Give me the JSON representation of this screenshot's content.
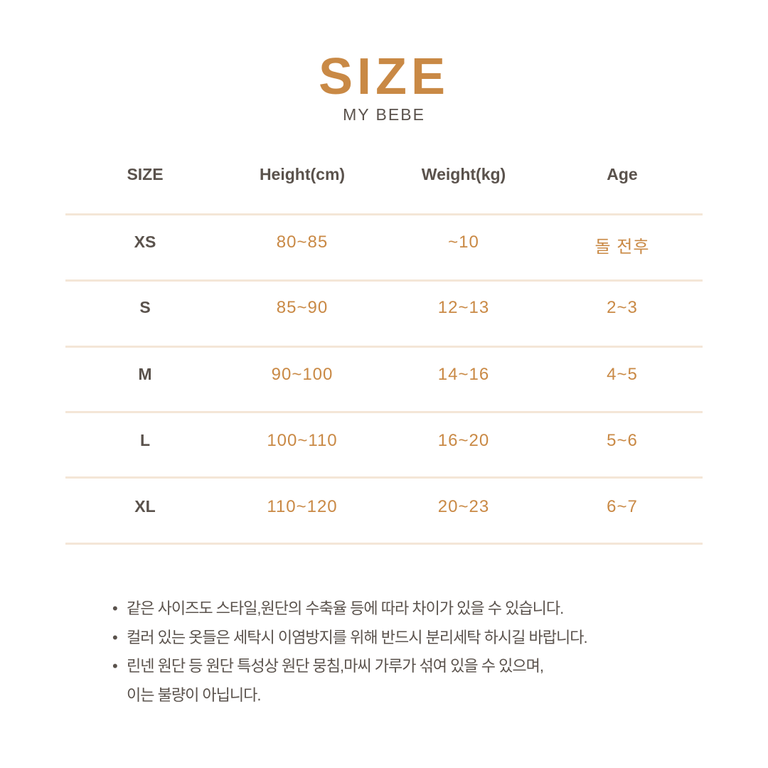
{
  "header": {
    "title": "SIZE",
    "subtitle": "MY BEBE"
  },
  "colors": {
    "accent": "#C98945",
    "text": "#5a524c",
    "divider": "#f4e6d7"
  },
  "table": {
    "columns": [
      "SIZE",
      "Height(cm)",
      "Weight(kg)",
      "Age"
    ],
    "rows": [
      [
        "XS",
        "80~85",
        "~10",
        "돌 전후"
      ],
      [
        "S",
        "85~90",
        "12~13",
        "2~3"
      ],
      [
        "M",
        "90~100",
        "14~16",
        "4~5"
      ],
      [
        "L",
        "100~110",
        "16~20",
        "5~6"
      ],
      [
        "XL",
        "110~120",
        "20~23",
        "6~7"
      ]
    ]
  },
  "notes": [
    "같은 사이즈도 스타일,원단의 수축율 등에 따라 차이가 있을 수 있습니다.",
    "컬러 있는 옷들은 세탁시 이염방지를 위해 반드시 분리세탁 하시길 바랍니다.",
    "린넨 원단 등 원단 특성상 원단 뭉침,마씨 가루가 섞여 있을 수 있으며,"
  ],
  "notes_continuation": "이는 불량이 아닙니다.",
  "bullet": "•"
}
